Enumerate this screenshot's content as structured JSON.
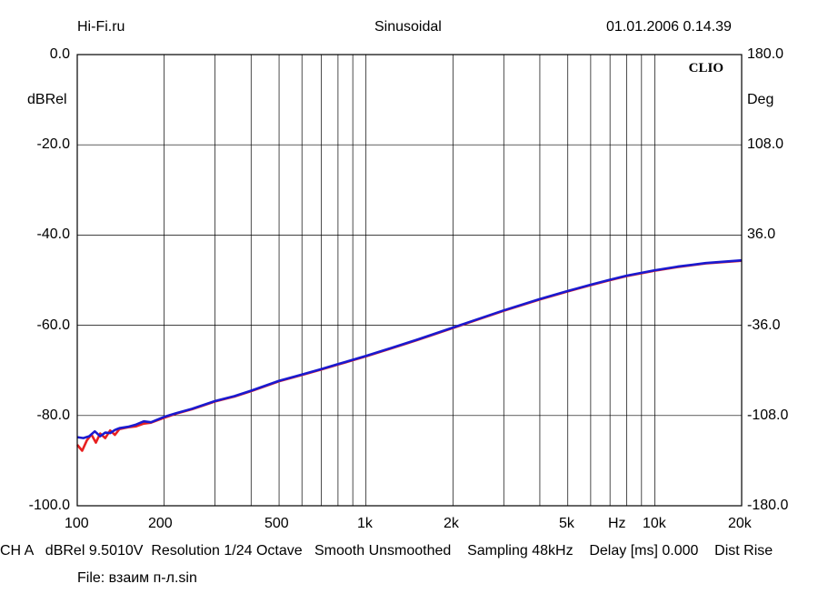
{
  "header": {
    "site": "Hi-Fi.ru",
    "mode": "Sinusoidal",
    "datetime": "01.01.2006 0.14.39"
  },
  "logo": "CLIO",
  "left_axis": {
    "unit": "dBRel",
    "ticks": [
      "0.0",
      "-20.0",
      "-40.0",
      "-60.0",
      "-80.0",
      "-100.0"
    ]
  },
  "right_axis": {
    "unit": "Deg",
    "ticks": [
      "180.0",
      "108.0",
      "36.0",
      "-36.0",
      "-108.0",
      "-180.0"
    ]
  },
  "x_axis": {
    "unit": "Hz",
    "ticks": [
      "100",
      "200",
      "500",
      "1k",
      "2k",
      "5k",
      "10k",
      "20k"
    ]
  },
  "footer": {
    "line1": "CH A   dBRel 9.5010V  Resolution 1/24 Octave   Smooth Unsmoothed    Sampling 48kHz    Delay [ms] 0.000    Dist Rise",
    "line2": "File: взаим п-л.sin"
  },
  "colors": {
    "background": "#ffffff",
    "grid": "#000000",
    "series_red": "#e82020",
    "series_blue": "#1a1ad0"
  },
  "chart_data": {
    "type": "line",
    "x_scale": "log",
    "xlim": [
      100,
      20000
    ],
    "ylim": [
      -100,
      0
    ],
    "y2lim": [
      -180,
      180
    ],
    "grid": true,
    "x_tick_values": [
      100,
      200,
      500,
      1000,
      2000,
      5000,
      10000,
      20000
    ],
    "y_tick_values": [
      0,
      -20,
      -40,
      -60,
      -80,
      -100
    ],
    "y2_tick_values": [
      180,
      108,
      36,
      -36,
      -108,
      -180
    ],
    "series": [
      {
        "color": "red",
        "x": [
          100,
          104,
          108,
          112,
          116,
          120,
          125,
          130,
          135,
          140,
          150,
          160,
          170,
          180,
          200,
          220,
          250,
          300,
          350,
          400,
          500,
          600,
          700,
          800,
          1000,
          1200,
          1500,
          2000,
          2500,
          3000,
          4000,
          5000,
          6000,
          7000,
          8000,
          10000,
          12000,
          15000,
          20000
        ],
        "y": [
          -86.5,
          -87.8,
          -85.5,
          -84.2,
          -86.0,
          -84.0,
          -85.0,
          -83.3,
          -84.3,
          -83.0,
          -82.6,
          -82.4,
          -81.8,
          -81.6,
          -80.5,
          -79.6,
          -78.6,
          -76.9,
          -75.8,
          -74.6,
          -72.4,
          -71.0,
          -69.8,
          -68.7,
          -66.9,
          -65.3,
          -63.3,
          -60.6,
          -58.5,
          -56.8,
          -54.3,
          -52.5,
          -51.1,
          -50.0,
          -49.1,
          -47.9,
          -47.1,
          -46.3,
          -45.7
        ]
      },
      {
        "color": "blue",
        "x": [
          100,
          105,
          110,
          115,
          120,
          125,
          130,
          135,
          140,
          150,
          160,
          170,
          180,
          200,
          220,
          250,
          300,
          350,
          400,
          500,
          600,
          700,
          800,
          1000,
          1200,
          1500,
          2000,
          2500,
          3000,
          4000,
          5000,
          6000,
          7000,
          8000,
          10000,
          12000,
          15000,
          20000
        ],
        "y": [
          -84.8,
          -85.0,
          -84.6,
          -83.5,
          -84.6,
          -83.8,
          -83.9,
          -83.2,
          -82.8,
          -82.5,
          -82.0,
          -81.3,
          -81.5,
          -80.3,
          -79.5,
          -78.5,
          -76.8,
          -75.7,
          -74.5,
          -72.3,
          -70.9,
          -69.7,
          -68.6,
          -66.8,
          -65.2,
          -63.2,
          -60.5,
          -58.4,
          -56.7,
          -54.2,
          -52.4,
          -51.0,
          -49.9,
          -49.0,
          -47.8,
          -47.0,
          -46.2,
          -45.6
        ]
      }
    ]
  }
}
